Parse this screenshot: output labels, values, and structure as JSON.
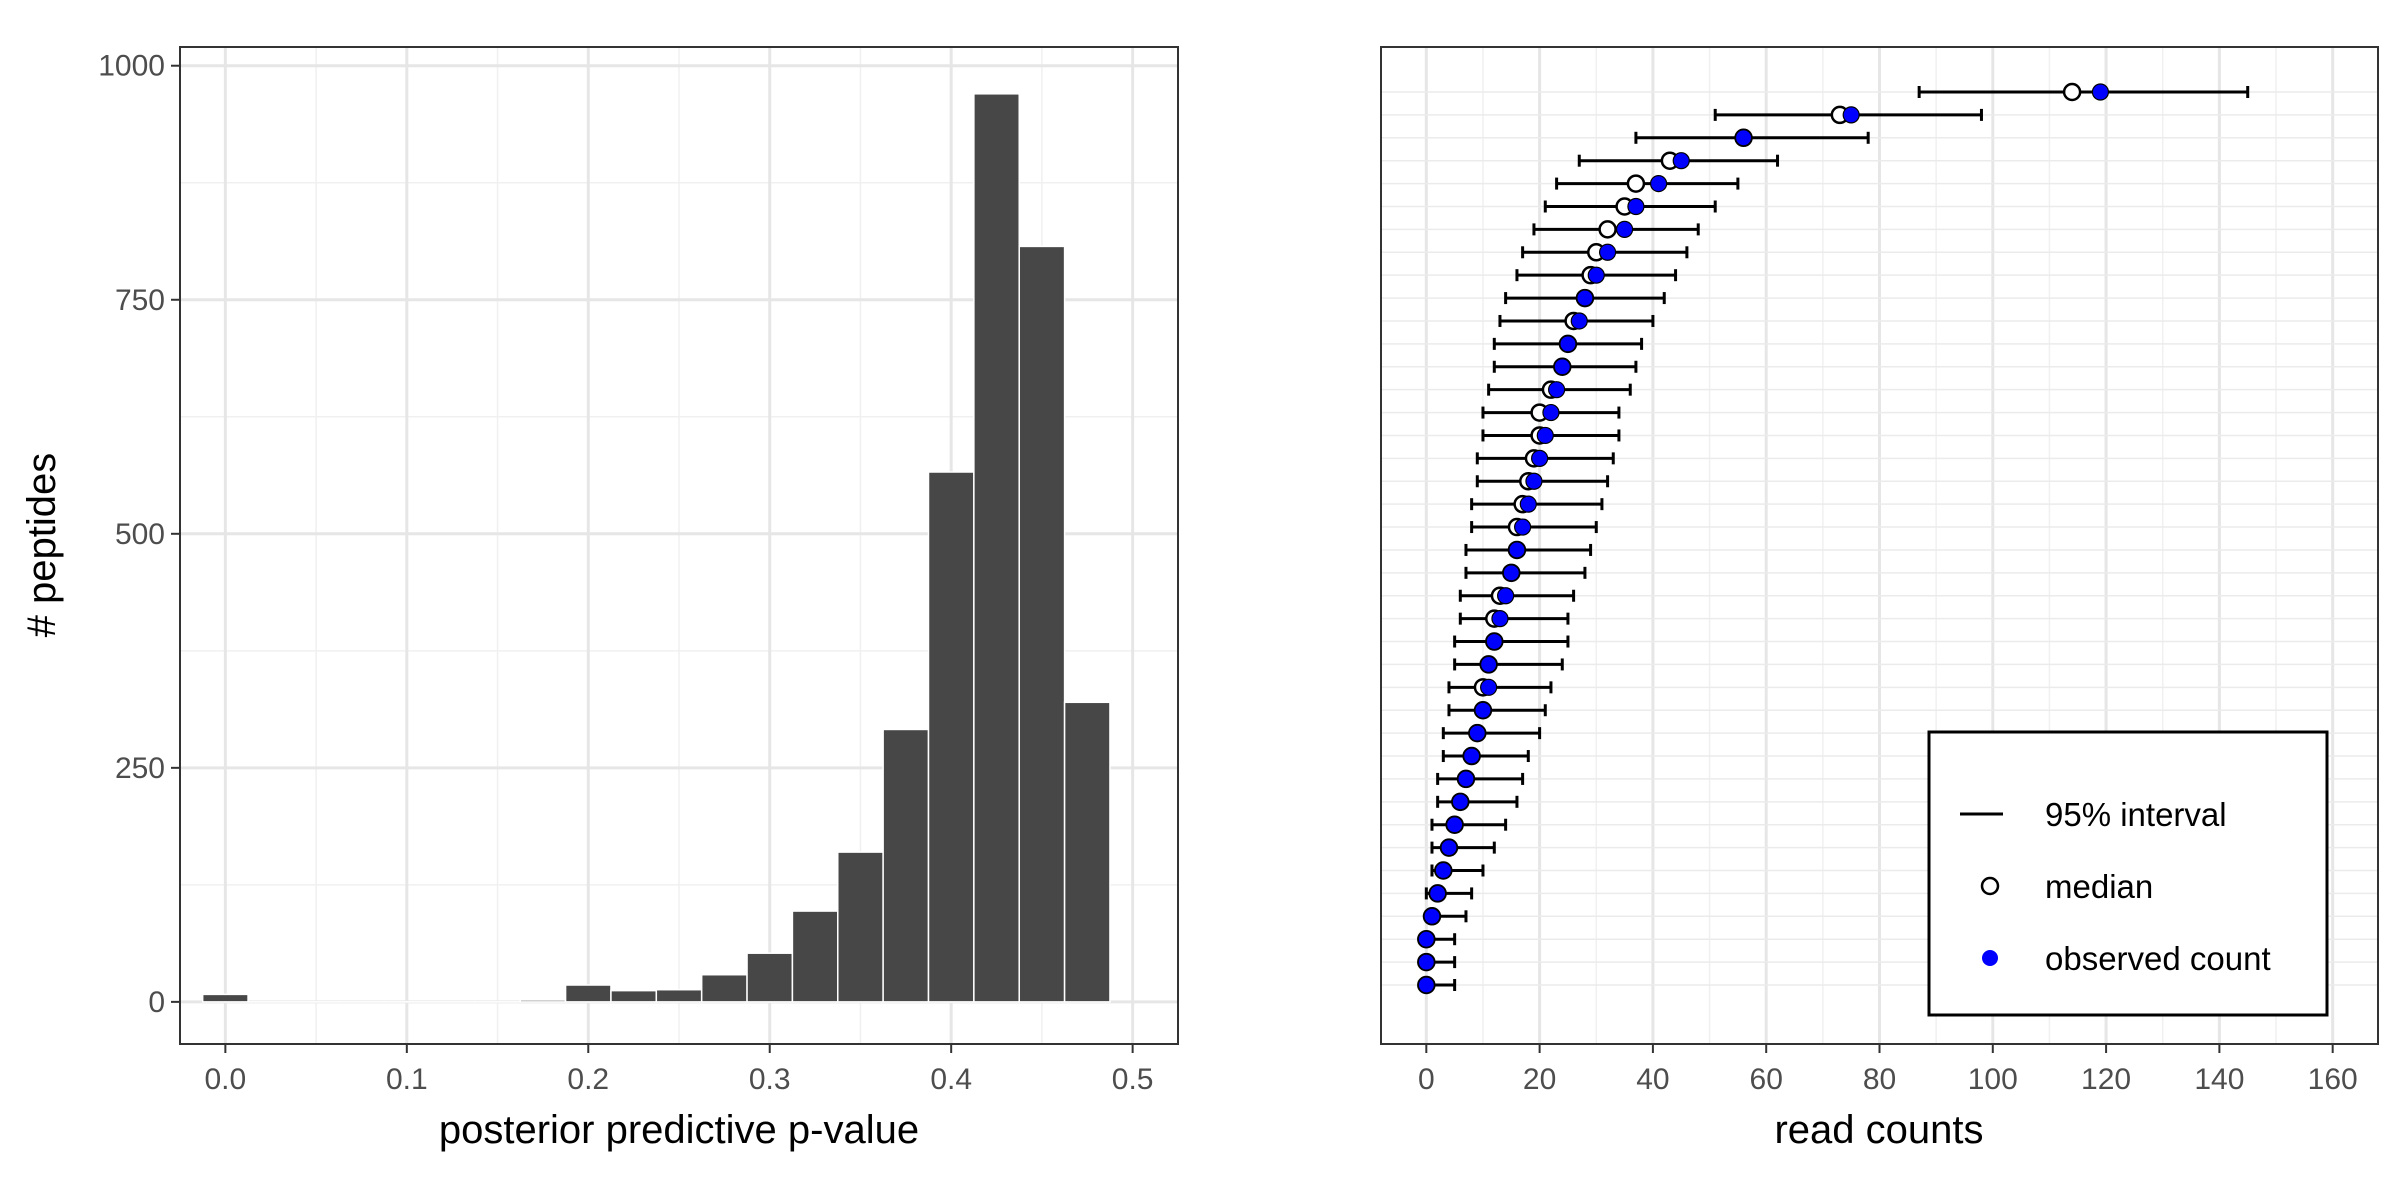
{
  "chart_data": [
    {
      "type": "bar",
      "xlabel": "posterior predictive p-value",
      "ylabel": "# peptides",
      "xlim": [
        -0.025,
        0.525
      ],
      "ylim": [
        -45,
        1020
      ],
      "x_ticks": [
        "0.0",
        "0.1",
        "0.2",
        "0.3",
        "0.4",
        "0.5"
      ],
      "y_ticks": [
        "0",
        "250",
        "500",
        "750",
        "1000"
      ],
      "bin_width": 0.025,
      "bins": [
        {
          "x": 0.0,
          "count": 8
        },
        {
          "x": 0.025,
          "count": 0
        },
        {
          "x": 0.05,
          "count": 0
        },
        {
          "x": 0.075,
          "count": 0
        },
        {
          "x": 0.1,
          "count": 0
        },
        {
          "x": 0.125,
          "count": 0
        },
        {
          "x": 0.15,
          "count": 0
        },
        {
          "x": 0.175,
          "count": 2
        },
        {
          "x": 0.2,
          "count": 18
        },
        {
          "x": 0.225,
          "count": 12
        },
        {
          "x": 0.25,
          "count": 13
        },
        {
          "x": 0.275,
          "count": 29
        },
        {
          "x": 0.3,
          "count": 52
        },
        {
          "x": 0.325,
          "count": 97
        },
        {
          "x": 0.35,
          "count": 160
        },
        {
          "x": 0.375,
          "count": 291
        },
        {
          "x": 0.4,
          "count": 566
        },
        {
          "x": 0.425,
          "count": 970
        },
        {
          "x": 0.45,
          "count": 807
        },
        {
          "x": 0.475,
          "count": 320
        }
      ],
      "bar_color": "#474747",
      "grid": true
    },
    {
      "type": "scatter",
      "xlabel": "read counts",
      "ylabel": "",
      "xlim": [
        -8,
        168
      ],
      "x_ticks": [
        "0",
        "20",
        "40",
        "60",
        "80",
        "100",
        "120",
        "140",
        "160"
      ],
      "grid": true,
      "n_rows": 40,
      "legend": {
        "position": "bottom-right",
        "entries": [
          {
            "key": "interval",
            "label": "95% interval"
          },
          {
            "key": "median",
            "label": "median"
          },
          {
            "key": "observed",
            "label": "observed count"
          }
        ]
      },
      "colors": {
        "observed": "#0000ff",
        "median_edge": "#000000",
        "interval": "#000000"
      },
      "rows": [
        {
          "lo": 87,
          "hi": 145,
          "median": 114,
          "observed": 119
        },
        {
          "lo": 51,
          "hi": 98,
          "median": 73,
          "observed": 75
        },
        {
          "lo": 37,
          "hi": 78,
          "median": 56,
          "observed": 56
        },
        {
          "lo": 27,
          "hi": 62,
          "median": 43,
          "observed": 45
        },
        {
          "lo": 23,
          "hi": 55,
          "median": 37,
          "observed": 41
        },
        {
          "lo": 21,
          "hi": 51,
          "median": 35,
          "observed": 37
        },
        {
          "lo": 19,
          "hi": 48,
          "median": 32,
          "observed": 35
        },
        {
          "lo": 17,
          "hi": 46,
          "median": 30,
          "observed": 32
        },
        {
          "lo": 16,
          "hi": 44,
          "median": 29,
          "observed": 30
        },
        {
          "lo": 14,
          "hi": 42,
          "median": 28,
          "observed": 28
        },
        {
          "lo": 13,
          "hi": 40,
          "median": 26,
          "observed": 27
        },
        {
          "lo": 12,
          "hi": 38,
          "median": 25,
          "observed": 25
        },
        {
          "lo": 12,
          "hi": 37,
          "median": 24,
          "observed": 24
        },
        {
          "lo": 11,
          "hi": 36,
          "median": 22,
          "observed": 23
        },
        {
          "lo": 10,
          "hi": 34,
          "median": 20,
          "observed": 22
        },
        {
          "lo": 10,
          "hi": 34,
          "median": 20,
          "observed": 21
        },
        {
          "lo": 9,
          "hi": 33,
          "median": 19,
          "observed": 20
        },
        {
          "lo": 9,
          "hi": 32,
          "median": 18,
          "observed": 19
        },
        {
          "lo": 8,
          "hi": 31,
          "median": 17,
          "observed": 18
        },
        {
          "lo": 8,
          "hi": 30,
          "median": 16,
          "observed": 17
        },
        {
          "lo": 7,
          "hi": 29,
          "median": 16,
          "observed": 16
        },
        {
          "lo": 7,
          "hi": 28,
          "median": 15,
          "observed": 15
        },
        {
          "lo": 6,
          "hi": 26,
          "median": 13,
          "observed": 14
        },
        {
          "lo": 6,
          "hi": 25,
          "median": 12,
          "observed": 13
        },
        {
          "lo": 5,
          "hi": 25,
          "median": 12,
          "observed": 12
        },
        {
          "lo": 5,
          "hi": 24,
          "median": 11,
          "observed": 11
        },
        {
          "lo": 4,
          "hi": 22,
          "median": 10,
          "observed": 11
        },
        {
          "lo": 4,
          "hi": 21,
          "median": 10,
          "observed": 10
        },
        {
          "lo": 3,
          "hi": 20,
          "median": 9,
          "observed": 9
        },
        {
          "lo": 3,
          "hi": 18,
          "median": 8,
          "observed": 8
        },
        {
          "lo": 2,
          "hi": 17,
          "median": 7,
          "observed": 7
        },
        {
          "lo": 2,
          "hi": 16,
          "median": 6,
          "observed": 6
        },
        {
          "lo": 1,
          "hi": 14,
          "median": 5,
          "observed": 5
        },
        {
          "lo": 1,
          "hi": 12,
          "median": 4,
          "observed": 4
        },
        {
          "lo": 1,
          "hi": 10,
          "median": 3,
          "observed": 3
        },
        {
          "lo": 0,
          "hi": 8,
          "median": 2,
          "observed": 2
        },
        {
          "lo": 0,
          "hi": 7,
          "median": 1,
          "observed": 1
        },
        {
          "lo": 0,
          "hi": 5,
          "median": 0,
          "observed": 0
        },
        {
          "lo": 0,
          "hi": 5,
          "median": 0,
          "observed": 0
        },
        {
          "lo": 0,
          "hi": 5,
          "median": 0,
          "observed": 0
        }
      ]
    }
  ]
}
